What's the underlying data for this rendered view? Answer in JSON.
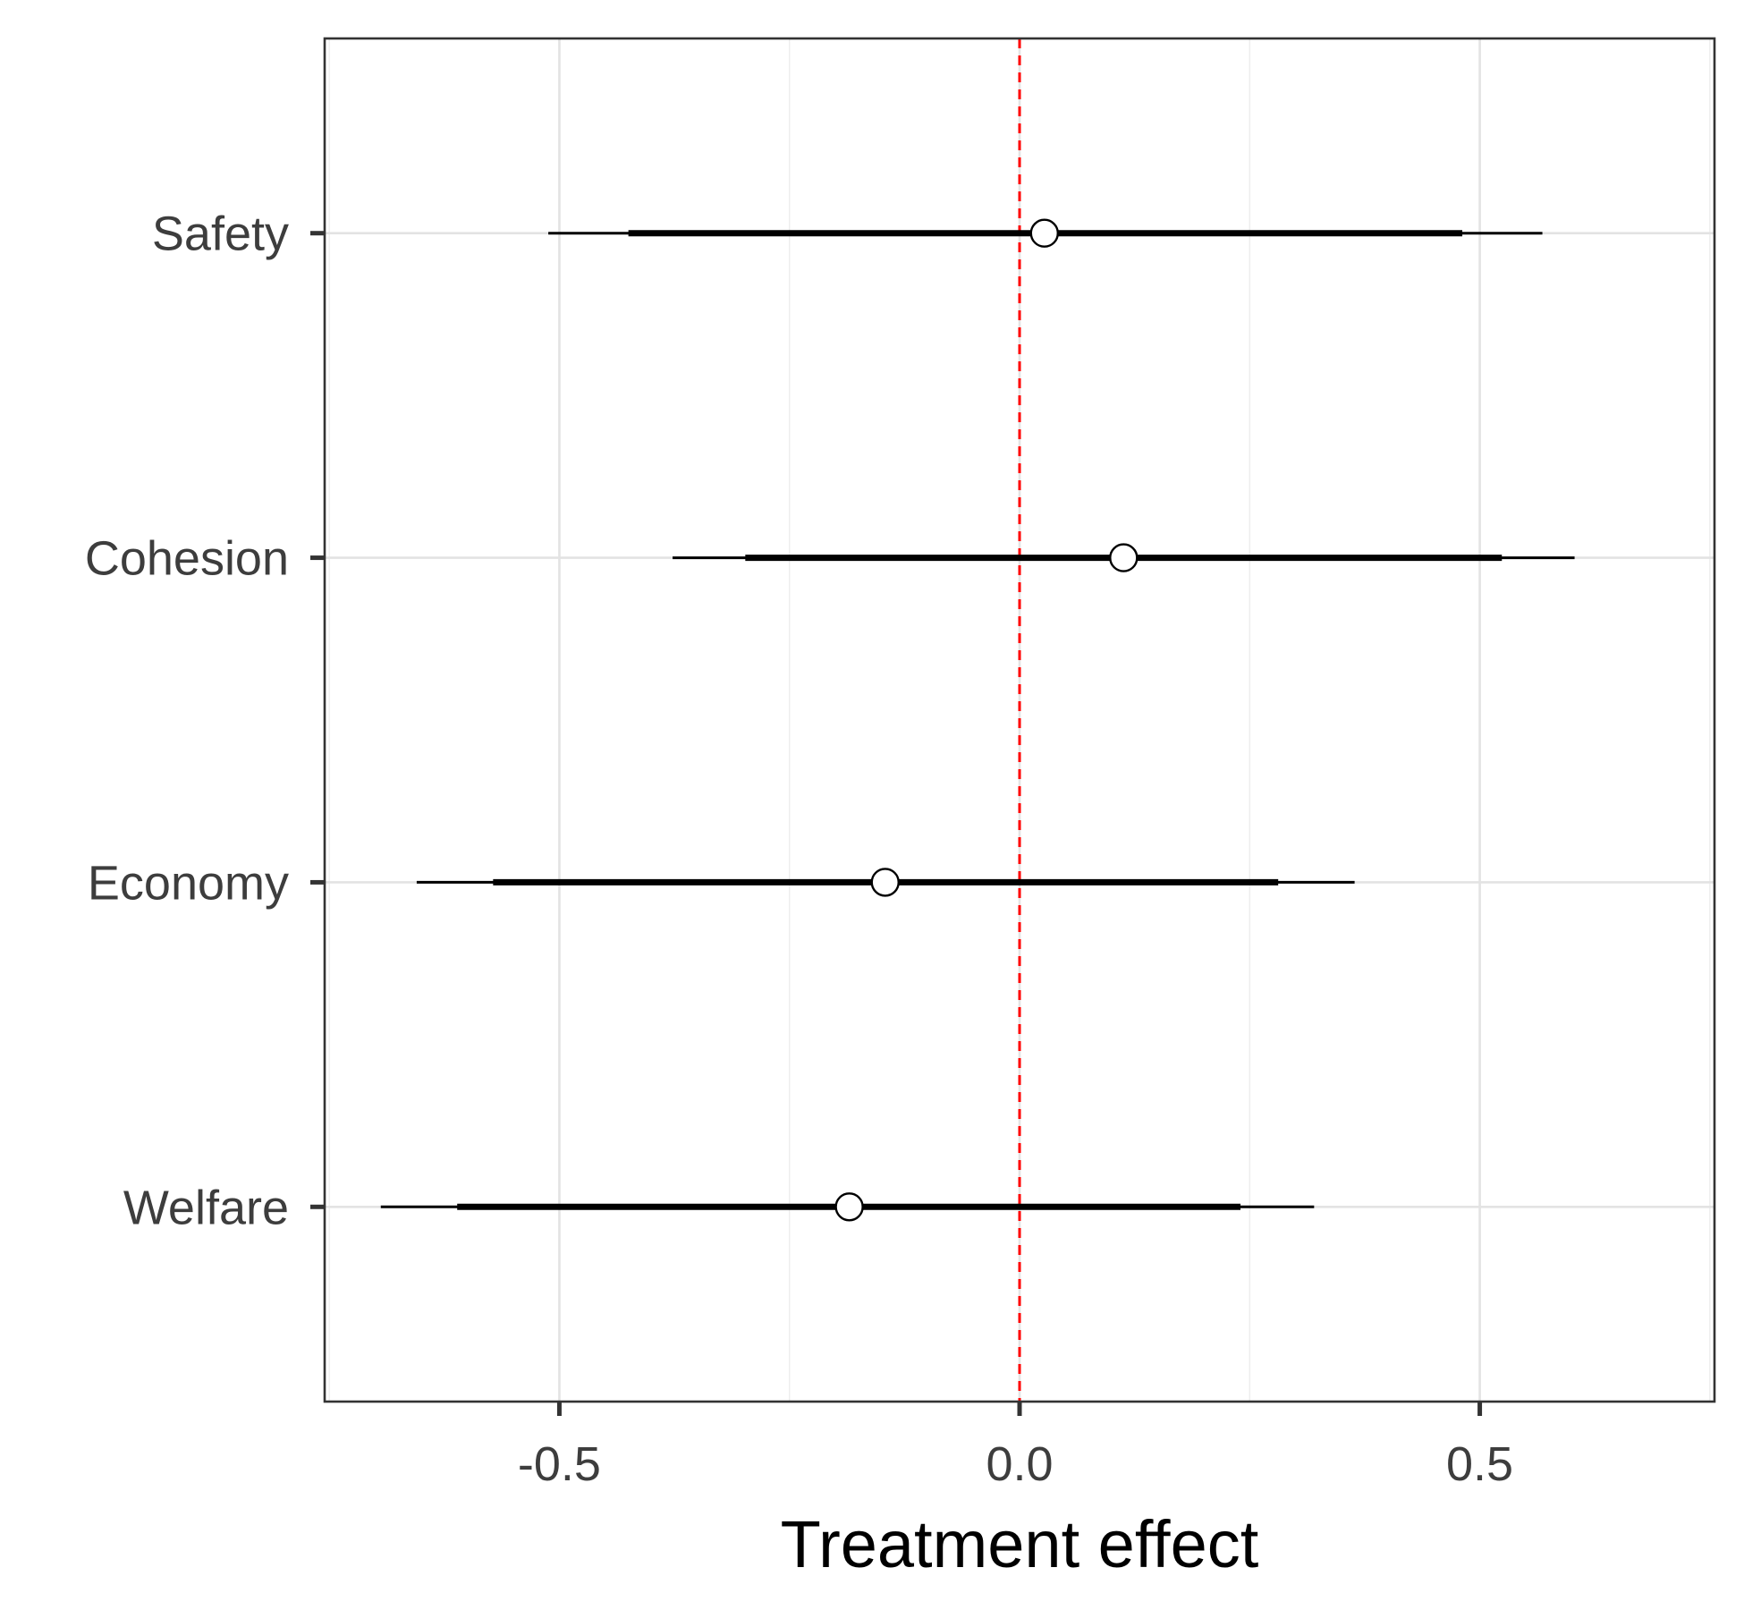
{
  "chart_data": {
    "type": "forest",
    "xlabel": "Treatment effect",
    "ylabel": "",
    "title": "",
    "xlim": [
      -0.755,
      0.755
    ],
    "xticks": [
      -0.5,
      0.0,
      0.5
    ],
    "xtick_labels": [
      "-0.5",
      "0.0",
      "0.5"
    ],
    "x_minor_gridlines": [
      -0.75,
      -0.25,
      0.25,
      0.75
    ],
    "grid": true,
    "reference_line": {
      "x": 0.0,
      "color": "#ff0000",
      "style": "dashed"
    },
    "categories": [
      "Safety",
      "Cohesion",
      "Economy",
      "Welfare"
    ],
    "points": [
      {
        "label": "Safety",
        "estimate": 0.027,
        "ci_inner": [
          -0.425,
          0.481
        ],
        "ci_outer": [
          -0.512,
          0.568
        ]
      },
      {
        "label": "Cohesion",
        "estimate": 0.113,
        "ci_inner": [
          -0.298,
          0.524
        ],
        "ci_outer": [
          -0.377,
          0.603
        ]
      },
      {
        "label": "Economy",
        "estimate": -0.146,
        "ci_inner": [
          -0.572,
          0.281
        ],
        "ci_outer": [
          -0.655,
          0.364
        ]
      },
      {
        "label": "Welfare",
        "estimate": -0.185,
        "ci_inner": [
          -0.611,
          0.24
        ],
        "ci_outer": [
          -0.694,
          0.32
        ]
      }
    ]
  }
}
